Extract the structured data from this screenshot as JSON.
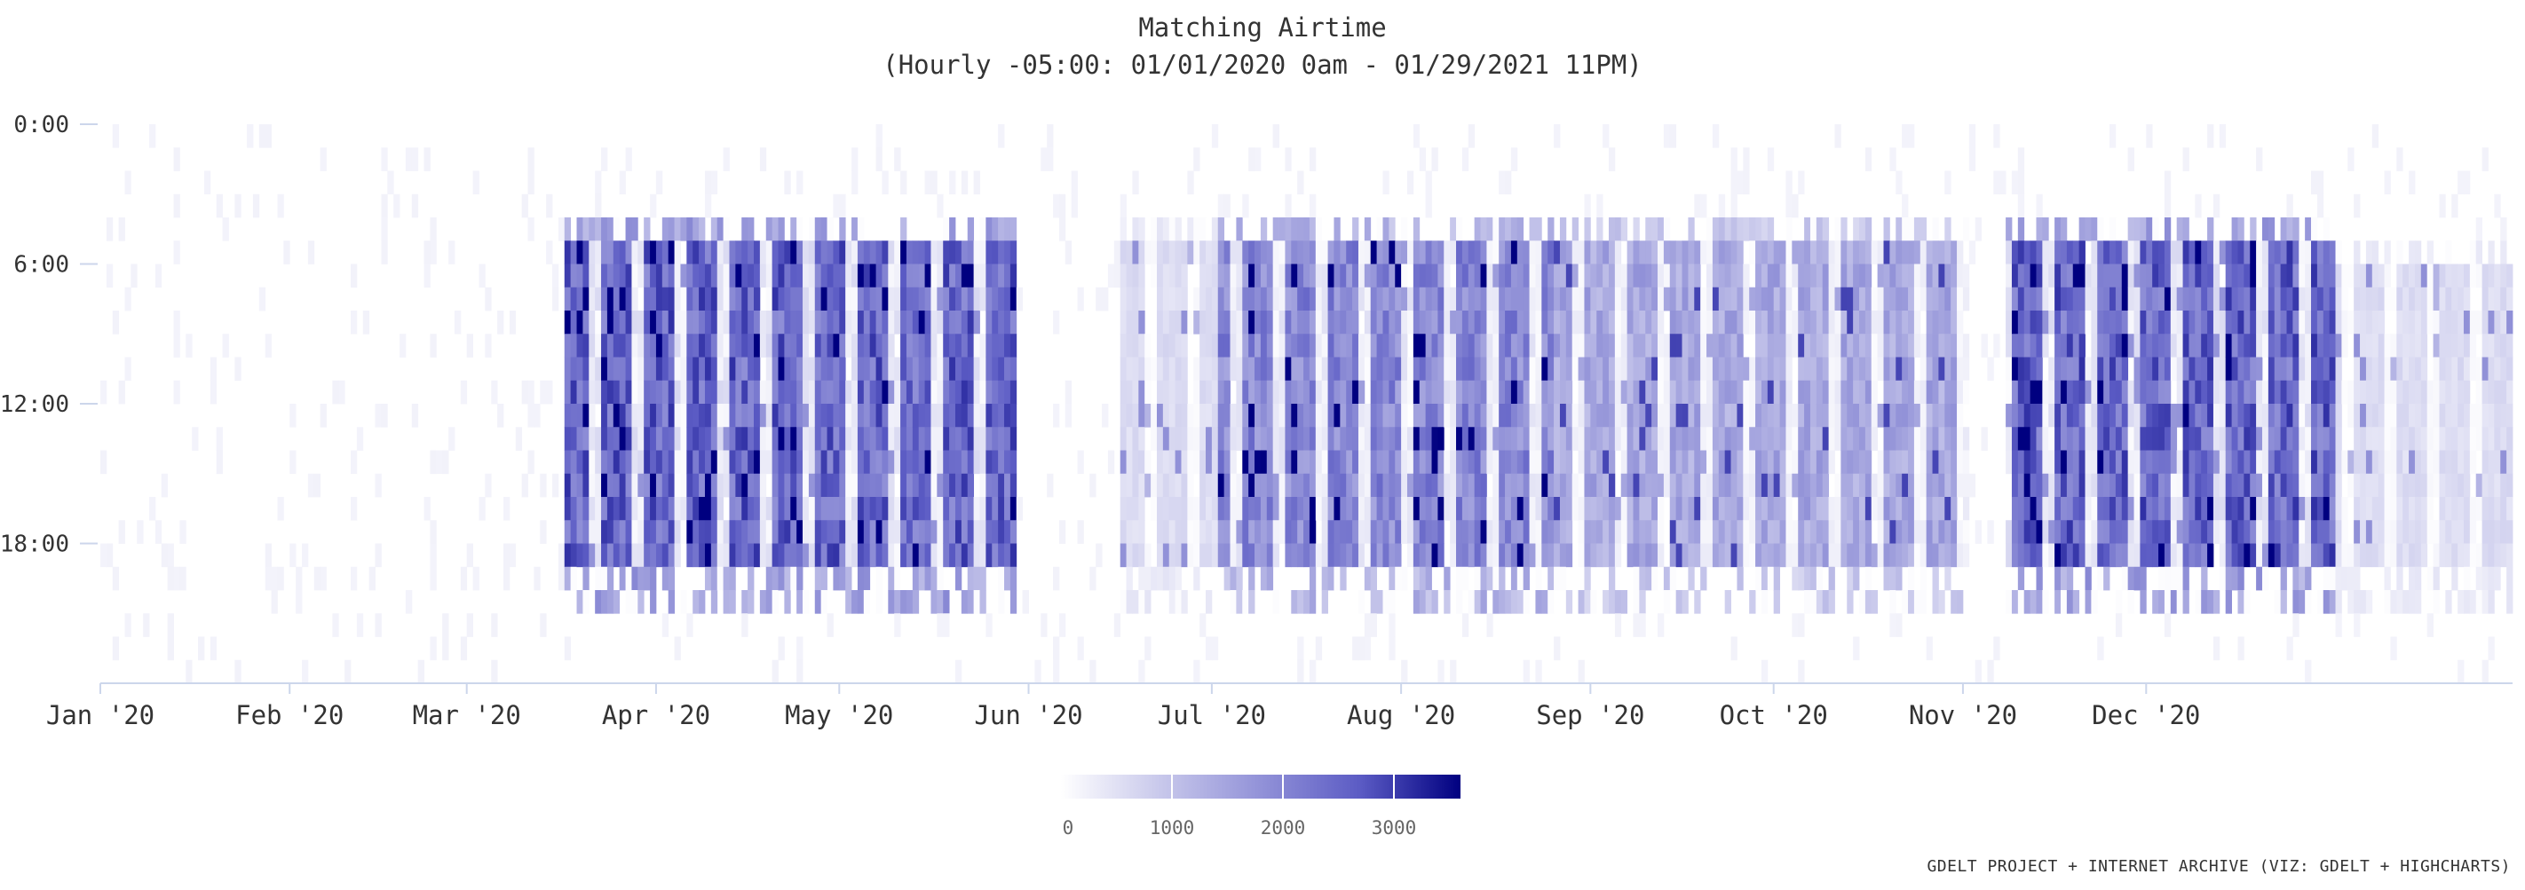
{
  "chart_data": {
    "type": "heatmap",
    "title": "Matching Airtime",
    "subtitle": "(Hourly -05:00: 01/01/2020 0am - 01/29/2021 11PM)",
    "x_start": "2020-01-01",
    "x_end": "2021-01-29",
    "x_ticks": [
      "Jan '20",
      "Feb '20",
      "Mar '20",
      "Apr '20",
      "May '20",
      "Jun '20",
      "Jul '20",
      "Aug '20",
      "Sep '20",
      "Oct '20",
      "Nov '20",
      "Dec '20"
    ],
    "x_tick_dates": [
      "2020-01-01",
      "2020-02-01",
      "2020-03-01",
      "2020-04-01",
      "2020-05-01",
      "2020-06-01",
      "2020-07-01",
      "2020-08-01",
      "2020-09-01",
      "2020-10-01",
      "2020-11-01",
      "2020-12-01"
    ],
    "y_ticks": [
      "0:00",
      "6:00",
      "12:00",
      "18:00"
    ],
    "y_tick_hours": [
      0,
      6,
      12,
      18
    ],
    "y_range": [
      0,
      24
    ],
    "color_axis": {
      "min": 0,
      "max": 3600,
      "ticks": [
        0,
        1000,
        2000,
        3000
      ],
      "min_color": "#ffffff",
      "max_color": "#000080"
    },
    "activity_periods": [
      {
        "from": "2020-03-17",
        "to": "2020-05-29",
        "level": "high",
        "from_hour": 5,
        "to_hour": 18
      },
      {
        "from": "2020-06-16",
        "to": "2020-07-01",
        "level": "low",
        "from_hour": 5,
        "to_hour": 18
      },
      {
        "from": "2020-07-01",
        "to": "2020-08-25",
        "level": "mid-high",
        "from_hour": 5,
        "to_hour": 18
      },
      {
        "from": "2020-08-25",
        "to": "2020-09-25",
        "level": "mixed",
        "from_hour": 5,
        "to_hour": 18
      },
      {
        "from": "2020-09-25",
        "to": "2020-11-01",
        "level": "mixed",
        "from_hour": 5,
        "to_hour": 18
      },
      {
        "from": "2020-11-08",
        "to": "2020-12-31",
        "level": "high",
        "from_hour": 5,
        "to_hour": 18
      },
      {
        "from": "2021-01-01",
        "to": "2021-01-29",
        "level": "low",
        "from_hour": 6,
        "to_hour": 18
      }
    ],
    "legend": "bottom-center",
    "grid": false
  },
  "credits": "GDELT PROJECT + INTERNET ARCHIVE (VIZ: GDELT + HIGHCHARTS)",
  "colors": {
    "axis_line": "#ccd6eb",
    "text": "#333333"
  }
}
